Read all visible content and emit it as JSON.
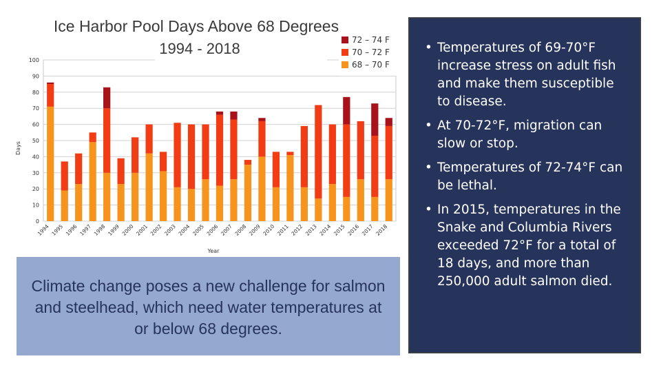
{
  "chart_data": {
    "type": "bar",
    "stacked": true,
    "title": "Ice Harbor Pool Days Above 68 Degrees",
    "subtitle": "1994 - 2018",
    "xlabel": "Year",
    "ylabel": "Days",
    "ylim": [
      0,
      100
    ],
    "yticks": [
      0,
      10,
      20,
      30,
      40,
      50,
      60,
      70,
      80,
      90,
      100
    ],
    "grid": true,
    "legend_position": "top-right",
    "categories": [
      "1994",
      "1995",
      "1996",
      "1997",
      "1998",
      "1999",
      "2000",
      "2001",
      "2002",
      "2003",
      "2004",
      "2005",
      "2006",
      "2007",
      "2008",
      "2009",
      "2010",
      "2011",
      "2012",
      "2013",
      "2014",
      "2015",
      "2016",
      "2017",
      "2018"
    ],
    "series": [
      {
        "name": "68 – 70 F",
        "color": "#f7941d",
        "values": [
          71,
          19,
          23,
          49,
          30,
          23,
          30,
          42,
          31,
          21,
          20,
          26,
          22,
          26,
          35,
          40,
          21,
          41,
          21,
          14,
          23,
          15,
          26,
          15,
          26
        ]
      },
      {
        "name": "70 – 72 F",
        "color": "#f23d14",
        "values": [
          14,
          18,
          19,
          6,
          40,
          16,
          22,
          18,
          12,
          40,
          40,
          34,
          44,
          37,
          3,
          22,
          22,
          2,
          38,
          58,
          37,
          45,
          36,
          38,
          33
        ]
      },
      {
        "name": "72 – 74 F",
        "color": "#a8121a",
        "values": [
          1,
          0,
          0,
          0,
          13,
          0,
          0,
          0,
          0,
          0,
          0,
          0,
          2,
          5,
          0,
          2,
          0,
          0,
          0,
          0,
          0,
          17,
          0,
          20,
          5
        ]
      }
    ],
    "legend_order": [
      "72 – 74 F",
      "70 – 72 F",
      "68 – 70 F"
    ]
  },
  "caption": {
    "text": "Climate change poses a new challenge for salmon and steelhead, which need water temperatures at or below 68 degrees."
  },
  "bullets": {
    "items": [
      "Temperatures of 69-70°F increase stress on adult fish and make them susceptible to disease.",
      "At 70-72°F, migration can slow or stop.",
      "Temperatures of 72-74°F can be lethal.",
      "In 2015, temperatures in the Snake and Columbia Rivers exceeded 72°F for a total of 18 days, and more than 250,000 adult salmon died."
    ],
    "marker": "•"
  }
}
